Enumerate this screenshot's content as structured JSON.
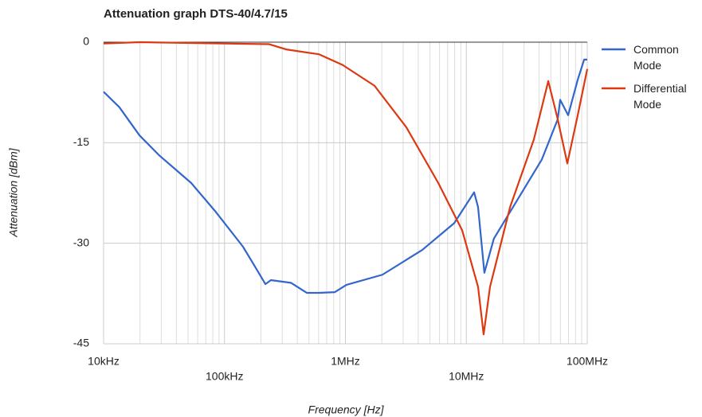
{
  "chart_data": {
    "type": "line",
    "title": "Attenuation graph DTS-40/4.7/15",
    "x_label": "Frequency [Hz]",
    "y_label": "Attenuation [dBm]",
    "xscale": "log",
    "xlim": [
      10000,
      100000000
    ],
    "xticks": [
      {
        "value": 10000,
        "label": "10kHz"
      },
      {
        "value": 100000,
        "label": "100kHz"
      },
      {
        "value": 1000000,
        "label": "1MHz"
      },
      {
        "value": 10000000,
        "label": "10MHz"
      },
      {
        "value": 100000000,
        "label": "100MHz"
      }
    ],
    "xminorticks": [
      20000,
      30000,
      40000,
      50000,
      60000,
      70000,
      80000,
      90000,
      200000,
      300000,
      400000,
      500000,
      600000,
      700000,
      800000,
      900000,
      2000000,
      3000000,
      4000000,
      5000000,
      6000000,
      7000000,
      8000000,
      9000000,
      20000000,
      30000000,
      40000000,
      50000000,
      60000000,
      70000000,
      80000000,
      90000000
    ],
    "ylim": [
      -45,
      0
    ],
    "yticks": [
      0,
      -15,
      -30,
      -45
    ],
    "grid": true,
    "legend": "right",
    "series": [
      {
        "name": "Common Mode",
        "color": "#3366cc",
        "x": [
          10000,
          13500,
          19800,
          28900,
          53000,
          83600,
          142000,
          179000,
          218000,
          242000,
          354000,
          479000,
          603000,
          815000,
          1020000,
          2020000,
          4320000,
          7940000,
          11600000,
          12500000,
          14100000,
          16900000,
          26700000,
          42100000,
          57000000,
          59700000,
          69500000,
          83400000,
          94200000,
          100000000
        ],
        "values": [
          -7.4,
          -9.7,
          -13.9,
          -16.9,
          -21.0,
          -25.2,
          -30.5,
          -33.5,
          -36.1,
          -35.5,
          -35.9,
          -37.4,
          -37.4,
          -37.3,
          -36.2,
          -34.7,
          -31.0,
          -27.0,
          -22.4,
          -24.6,
          -34.4,
          -29.3,
          -23.4,
          -17.5,
          -11.5,
          -8.6,
          -10.9,
          -5.6,
          -2.6,
          -2.6
        ]
      },
      {
        "name": "Differential Mode",
        "color": "#dc3912",
        "x": [
          10000,
          19800,
          97700,
          234000,
          328000,
          603000,
          948000,
          1740000,
          3190000,
          5860000,
          9250000,
          12500000,
          13900000,
          15700000,
          23000000,
          36200000,
          47600000,
          57000000,
          68400000,
          83400000,
          100000000
        ],
        "values": [
          -0.2,
          0,
          -0.2,
          -0.3,
          -1.1,
          -1.8,
          -3.4,
          -6.5,
          -12.7,
          -21.0,
          -28.1,
          -36.5,
          -43.6,
          -36.5,
          -24.6,
          -14.5,
          -5.8,
          -11.5,
          -18.1,
          -10.9,
          -4.0
        ]
      }
    ]
  }
}
